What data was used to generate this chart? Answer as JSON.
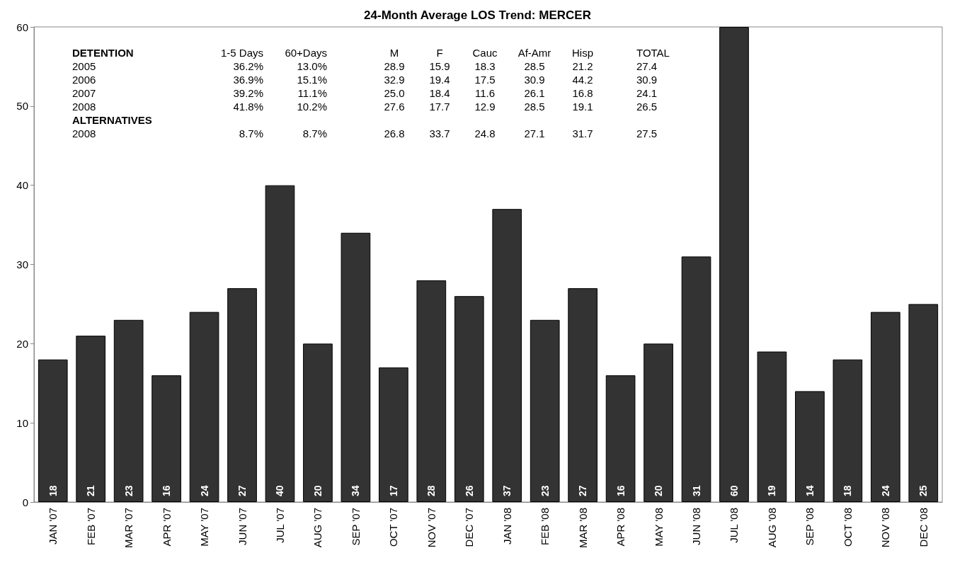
{
  "chart_data": {
    "type": "bar",
    "title": "24-Month Average LOS Trend: MERCER",
    "categories": [
      "JAN '07",
      "FEB '07",
      "MAR '07",
      "APR '07",
      "MAY '07",
      "JUN '07",
      "JUL '07",
      "AUG '07",
      "SEP '07",
      "OCT '07",
      "NOV '07",
      "DEC '07",
      "JAN '08",
      "FEB '08",
      "MAR '08",
      "APR '08",
      "MAY '08",
      "JUN '08",
      "JUL '08",
      "AUG '08",
      "SEP '08",
      "OCT '08",
      "NOV '08",
      "DEC '08"
    ],
    "values": [
      18,
      21,
      23,
      16,
      24,
      27,
      40,
      20,
      34,
      17,
      28,
      26,
      37,
      23,
      27,
      16,
      20,
      31,
      60,
      19,
      14,
      18,
      24,
      25
    ],
    "color": "#333333",
    "data_labels": true,
    "ylim": [
      0,
      60
    ],
    "yticks": [
      0,
      10,
      20,
      30,
      40,
      50,
      60
    ],
    "grid": false,
    "annotations": [
      "DETENTION",
      "1-5 Days",
      "60+Days",
      "M",
      "F",
      "Cauc",
      "Af-Amr",
      "Hisp",
      "TOTAL",
      "2005",
      "36.2%",
      "13.0%",
      "28.9",
      "15.9",
      "18.3",
      "28.5",
      "21.2",
      "27.4",
      "2006",
      "36.9%",
      "15.1%",
      "32.9",
      "19.4",
      "17.5",
      "30.9",
      "44.2",
      "30.9",
      "2007",
      "39.2%",
      "11.1%",
      "25.0",
      "18.4",
      "11.6",
      "26.1",
      "16.8",
      "24.1",
      "2008",
      "41.8%",
      "10.2%",
      "27.6",
      "17.7",
      "12.9",
      "28.5",
      "19.1",
      "26.5",
      "ALTERNATIVES",
      "2008",
      "8.7%",
      "8.7%",
      "26.8",
      "33.7",
      "24.8",
      "27.1",
      "31.7",
      "27.5"
    ]
  }
}
